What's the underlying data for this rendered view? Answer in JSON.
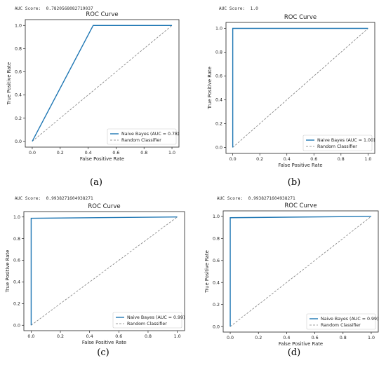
{
  "charts": [
    {
      "id": "a",
      "caption": "(a)",
      "auc_score_label": "AUC Score:",
      "auc_score_value": "0.7820568082719037",
      "chart_data": {
        "type": "line",
        "title": "ROC Curve",
        "xlabel": "False Positive Rate",
        "ylabel": "True Positive Rate",
        "xlim": [
          -0.05,
          1.05
        ],
        "ylim": [
          -0.05,
          1.05
        ],
        "xticks": [
          "0.0",
          "0.2",
          "0.4",
          "0.6",
          "0.8",
          "1.0"
        ],
        "yticks": [
          "0.0",
          "0.2",
          "0.4",
          "0.6",
          "0.8",
          "1.0"
        ],
        "legend_position": "lower-right",
        "grid": false,
        "series": [
          {
            "name": "Naive Bayes (AUC = 0.78)",
            "style": "solid",
            "color": "#1f77b4",
            "x": [
              0.0,
              0.436,
              1.0
            ],
            "y": [
              0.0,
              1.0,
              1.0
            ]
          },
          {
            "name": "Random Classifier",
            "style": "dashed",
            "color": "#7f7f7f",
            "x": [
              0.0,
              1.0
            ],
            "y": [
              0.0,
              1.0
            ]
          }
        ]
      }
    },
    {
      "id": "b",
      "caption": "(b)",
      "auc_score_label": "AUC Score:",
      "auc_score_value": "1.0",
      "chart_data": {
        "type": "line",
        "title": "ROC Curve",
        "xlabel": "False Positive Rate",
        "ylabel": "True Positive Rate",
        "xlim": [
          -0.05,
          1.05
        ],
        "ylim": [
          -0.05,
          1.05
        ],
        "xticks": [
          "0.0",
          "0.2",
          "0.4",
          "0.6",
          "0.8",
          "1.0"
        ],
        "yticks": [
          "0.0",
          "0.2",
          "0.4",
          "0.6",
          "0.8",
          "1.0"
        ],
        "legend_position": "lower-right",
        "grid": false,
        "series": [
          {
            "name": "Naive Bayes (AUC = 1.00)",
            "style": "solid",
            "color": "#1f77b4",
            "x": [
              0.0,
              0.0,
              1.0
            ],
            "y": [
              0.0,
              1.0,
              1.0
            ]
          },
          {
            "name": "Random Classifier",
            "style": "dashed",
            "color": "#7f7f7f",
            "x": [
              0.0,
              1.0
            ],
            "y": [
              0.0,
              1.0
            ]
          }
        ]
      }
    },
    {
      "id": "c",
      "caption": "(c)",
      "auc_score_label": "AUC Score:",
      "auc_score_value": "0.9938271604938271",
      "chart_data": {
        "type": "line",
        "title": "ROC Curve",
        "xlabel": "False Positive Rate",
        "ylabel": "True Positive Rate",
        "xlim": [
          -0.05,
          1.05
        ],
        "ylim": [
          -0.05,
          1.05
        ],
        "xticks": [
          "0.0",
          "0.2",
          "0.4",
          "0.6",
          "0.8",
          "1.0"
        ],
        "yticks": [
          "0.0",
          "0.2",
          "0.4",
          "0.6",
          "0.8",
          "1.0"
        ],
        "legend_position": "lower-right",
        "grid": false,
        "series": [
          {
            "name": "Naive Bayes (AUC = 0.99)",
            "style": "solid",
            "color": "#1f77b4",
            "x": [
              0.0,
              0.0,
              1.0
            ],
            "y": [
              0.0,
              0.988,
              1.0
            ]
          },
          {
            "name": "Random Classifier",
            "style": "dashed",
            "color": "#7f7f7f",
            "x": [
              0.0,
              1.0
            ],
            "y": [
              0.0,
              1.0
            ]
          }
        ]
      }
    },
    {
      "id": "d",
      "caption": "(d)",
      "auc_score_label": "AUC Score:",
      "auc_score_value": "0.9938271604938271",
      "chart_data": {
        "type": "line",
        "title": "ROC Curve",
        "xlabel": "False Positive Rate",
        "ylabel": "True Positive Rate",
        "xlim": [
          -0.05,
          1.05
        ],
        "ylim": [
          -0.05,
          1.05
        ],
        "xticks": [
          "0.0",
          "0.2",
          "0.4",
          "0.6",
          "0.8",
          "1.0"
        ],
        "yticks": [
          "0.0",
          "0.2",
          "0.4",
          "0.6",
          "0.8",
          "1.0"
        ],
        "legend_position": "lower-right",
        "grid": false,
        "series": [
          {
            "name": "Naive Bayes (AUC = 0.99)",
            "style": "solid",
            "color": "#1f77b4",
            "x": [
              0.0,
              0.0,
              1.0
            ],
            "y": [
              0.0,
              0.988,
              1.0
            ]
          },
          {
            "name": "Random Classifier",
            "style": "dashed",
            "color": "#7f7f7f",
            "x": [
              0.0,
              1.0
            ],
            "y": [
              0.0,
              1.0
            ]
          }
        ]
      }
    }
  ]
}
